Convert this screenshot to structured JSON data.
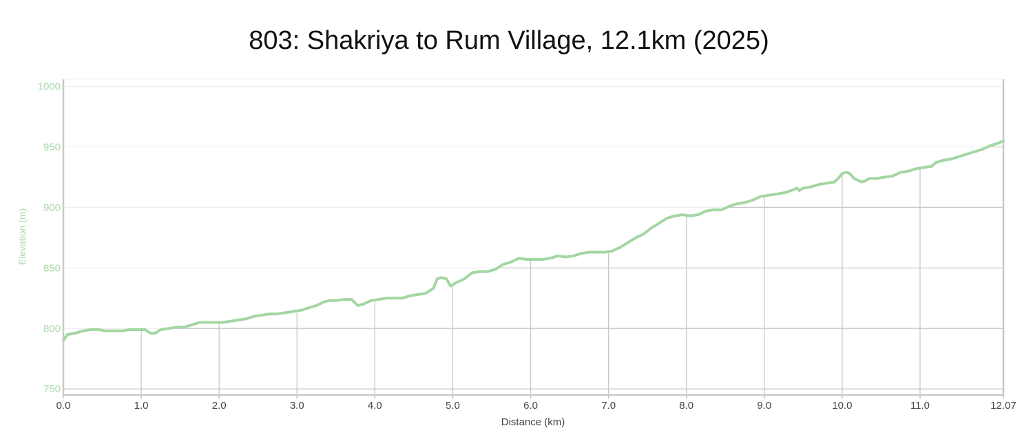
{
  "chart_data": {
    "type": "line",
    "title": "803: Shakriya to Rum Village, 12.1km (2025)",
    "xlabel": "Distance (km)",
    "ylabel": "Elevation (m)",
    "xlim": [
      0,
      12.07
    ],
    "ylim": [
      745,
      1006
    ],
    "x_ticks": [
      0,
      1,
      2,
      3,
      4,
      5,
      6,
      7,
      8,
      9,
      10,
      11,
      12.07
    ],
    "x_tick_labels": [
      "0.0",
      "1.0",
      "2.0",
      "3.0",
      "4.0",
      "5.0",
      "6.0",
      "7.0",
      "8.0",
      "9.0",
      "10.0",
      "11.0",
      "12.07"
    ],
    "y_ticks": [
      750,
      800,
      850,
      900,
      950,
      1000
    ],
    "y_tick_labels": [
      "750",
      "800",
      "850",
      "900",
      "950",
      "1000"
    ],
    "grid": true,
    "line_color": "#a3d6a3",
    "axis_label_color": "#a8d8a8",
    "series": [
      {
        "x": [
          0,
          0.05,
          0.15,
          0.25,
          0.35,
          0.45,
          0.55,
          0.65,
          0.75,
          0.85,
          0.95,
          1.05,
          1.12,
          1.18,
          1.25,
          1.35,
          1.45,
          1.55,
          1.65,
          1.75,
          1.85,
          1.95,
          2.05,
          2.15,
          2.25,
          2.35,
          2.45,
          2.55,
          2.65,
          2.75,
          2.85,
          2.95,
          3.05,
          3.15,
          3.25,
          3.35,
          3.42,
          3.5,
          3.6,
          3.7,
          3.78,
          3.85,
          3.95,
          4.05,
          4.15,
          4.25,
          4.35,
          4.45,
          4.55,
          4.65,
          4.75,
          4.8,
          4.85,
          4.92,
          4.97,
          5.05,
          5.15,
          5.25,
          5.35,
          5.45,
          5.55,
          5.65,
          5.75,
          5.85,
          5.95,
          6.05,
          6.15,
          6.25,
          6.35,
          6.45,
          6.55,
          6.65,
          6.75,
          6.85,
          6.95,
          7.05,
          7.15,
          7.25,
          7.35,
          7.45,
          7.55,
          7.65,
          7.75,
          7.85,
          7.95,
          8.05,
          8.15,
          8.25,
          8.35,
          8.45,
          8.55,
          8.65,
          8.75,
          8.85,
          8.95,
          9.05,
          9.15,
          9.25,
          9.35,
          9.42,
          9.45,
          9.5,
          9.6,
          9.7,
          9.8,
          9.9,
          9.95,
          10.0,
          10.05,
          10.1,
          10.15,
          10.25,
          10.3,
          10.35,
          10.45,
          10.55,
          10.65,
          10.75,
          10.85,
          10.95,
          11.05,
          11.15,
          11.2,
          11.3,
          11.4,
          11.5,
          11.6,
          11.7,
          11.8,
          11.9,
          12.0,
          12.07
        ],
        "y": [
          790,
          795,
          796,
          798,
          799,
          799,
          798,
          798,
          798,
          799,
          799,
          799,
          796,
          796,
          799,
          800,
          801,
          801,
          803,
          805,
          805,
          805,
          805,
          806,
          807,
          808,
          810,
          811,
          812,
          812,
          813,
          814,
          815,
          817,
          819,
          822,
          823,
          823,
          824,
          824,
          819,
          820,
          823,
          824,
          825,
          825,
          825,
          827,
          828,
          829,
          833,
          841,
          842,
          841,
          835,
          838,
          841,
          846,
          847,
          847,
          849,
          853,
          855,
          858,
          857,
          857,
          857,
          858,
          860,
          859,
          860,
          862,
          863,
          863,
          863,
          864,
          867,
          871,
          875,
          878,
          883,
          887,
          891,
          893,
          894,
          893,
          894,
          897,
          898,
          898,
          901,
          903,
          904,
          906,
          909,
          910,
          911,
          912,
          914,
          916,
          914,
          916,
          917,
          919,
          920,
          921,
          924,
          928,
          929,
          928,
          924,
          921,
          922,
          924,
          924,
          925,
          926,
          929,
          930,
          932,
          933,
          934,
          937,
          939,
          940,
          942,
          944,
          946,
          948,
          951,
          953,
          955
        ]
      }
    ]
  }
}
